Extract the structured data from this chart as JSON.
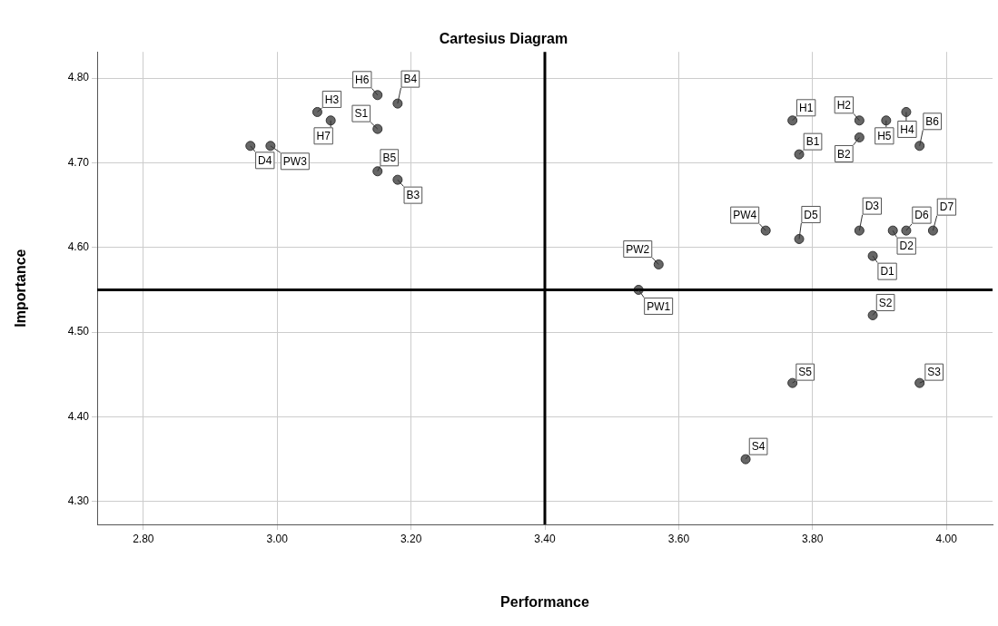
{
  "chart_data": {
    "type": "scatter",
    "title": "Cartesius Diagram",
    "xlabel": "Performance",
    "ylabel": "Importance",
    "x": [
      3.15,
      3.18,
      3.06,
      3.08,
      3.15,
      2.96,
      2.99,
      3.15,
      3.18,
      3.77,
      3.87,
      3.87,
      3.91,
      3.94,
      3.96,
      3.78,
      3.73,
      3.78,
      3.87,
      3.92,
      3.94,
      3.98,
      3.89,
      3.57,
      3.54,
      3.89,
      3.77,
      3.96,
      3.7
    ],
    "values": [
      4.78,
      4.77,
      4.76,
      4.75,
      4.74,
      4.72,
      4.72,
      4.69,
      4.68,
      4.75,
      4.75,
      4.73,
      4.75,
      4.76,
      4.72,
      4.71,
      4.62,
      4.61,
      4.62,
      4.62,
      4.62,
      4.62,
      4.59,
      4.58,
      4.55,
      4.52,
      4.44,
      4.44,
      4.35
    ],
    "value_labels": [
      "H6",
      "B4",
      "H3",
      "H7",
      "S1",
      "D4",
      "PW3",
      "B5",
      "B3",
      "H1",
      "H2",
      "B2",
      "H5",
      "H4",
      "B6",
      "B1",
      "PW4",
      "D5",
      "D3",
      "D2",
      "D6",
      "D7",
      "D1",
      "PW2",
      "PW1",
      "S2",
      "S5",
      "S3",
      "S4"
    ],
    "color": "#666666",
    "marker": "circle",
    "xlim": [
      2.731,
      4.069
    ],
    "ylim": [
      4.273,
      4.831
    ],
    "xticks": [
      {
        "value": 2.8,
        "label": "2.80"
      },
      {
        "value": 3.0,
        "label": "3.00"
      },
      {
        "value": 3.2,
        "label": "3.20"
      },
      {
        "value": 3.4,
        "label": "3.40"
      },
      {
        "value": 3.6,
        "label": "3.60"
      },
      {
        "value": 3.8,
        "label": "3.80"
      },
      {
        "value": 4.0,
        "label": "4.00"
      }
    ],
    "yticks": [
      {
        "value": 4.3,
        "label": "4.30"
      },
      {
        "value": 4.4,
        "label": "4.40"
      },
      {
        "value": 4.5,
        "label": "4.50"
      },
      {
        "value": 4.6,
        "label": "4.60"
      },
      {
        "value": 4.7,
        "label": "4.70"
      },
      {
        "value": 4.8,
        "label": "4.80"
      }
    ],
    "grid": true,
    "ref_lines": [
      {
        "axis": "x",
        "value": 3.4,
        "color": "#000000"
      },
      {
        "axis": "y",
        "value": 4.55,
        "color": "#000000"
      }
    ]
  }
}
